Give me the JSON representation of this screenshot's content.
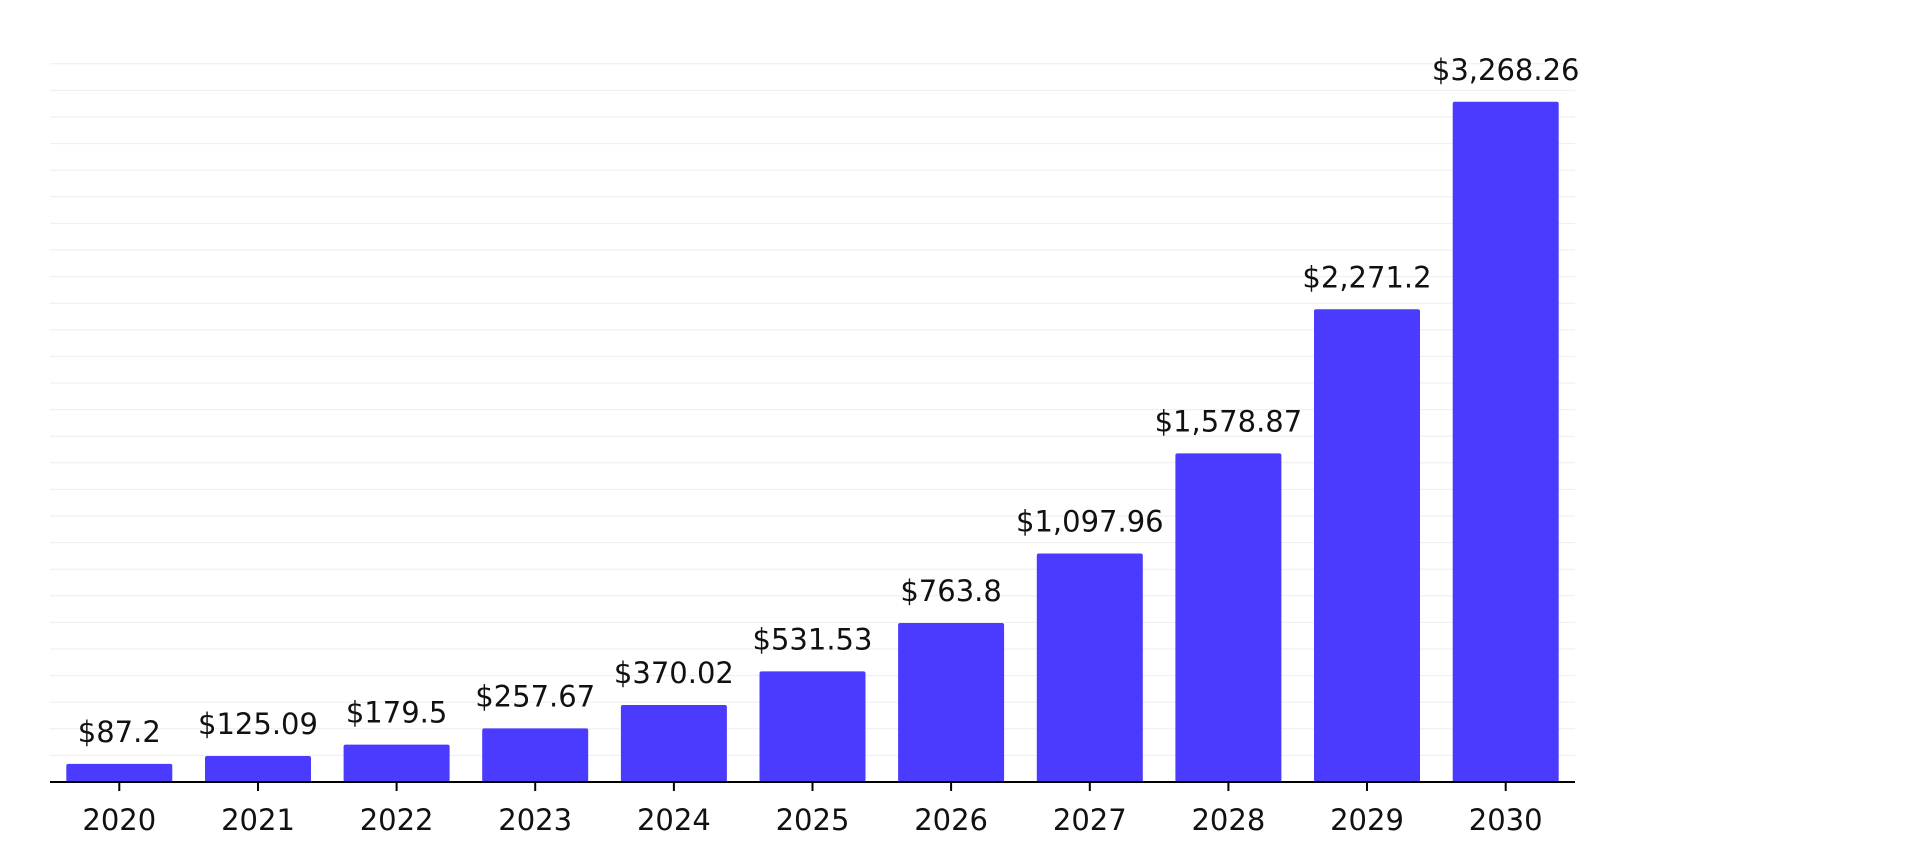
{
  "chart_data": {
    "type": "bar",
    "categories": [
      "2020",
      "2021",
      "2022",
      "2023",
      "2024",
      "2025",
      "2026",
      "2027",
      "2028",
      "2029",
      "2030"
    ],
    "values": [
      87.2,
      125.09,
      179.5,
      257.67,
      370.02,
      531.53,
      763.8,
      1097.96,
      1578.87,
      2271.2,
      3268.26
    ],
    "data_labels": [
      "$87.2",
      "$125.09",
      "$179.5",
      "$257.67",
      "$370.02",
      "$531.53",
      "$763.8",
      "$1,097.96",
      "$1,578.87",
      "$2,271.2",
      "$3,268.26"
    ],
    "title": "",
    "xlabel": "",
    "ylabel": "",
    "ylim": [
      0,
      3450
    ],
    "grid": true,
    "legend": "none",
    "colors": {
      "bar": "#4b3bff",
      "grid": "#eeeeee",
      "axis": "#000000",
      "text": "#111111"
    }
  }
}
